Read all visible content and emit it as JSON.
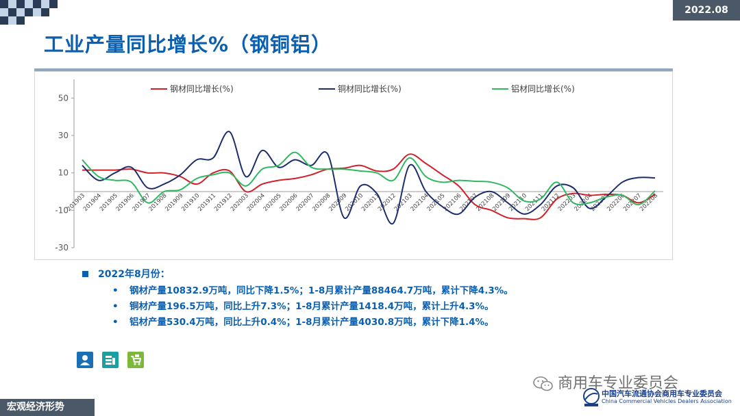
{
  "header": {
    "date_badge": "2022.08",
    "title": "工业产量同比增长%（钢铜铝）"
  },
  "chart_data": {
    "type": "line",
    "x": [
      "201903",
      "201904",
      "201905",
      "201906",
      "201907",
      "201908",
      "201909",
      "201910",
      "201911",
      "201912",
      "202003",
      "202004",
      "202005",
      "202006",
      "202007",
      "202008",
      "202009",
      "202010",
      "202011",
      "202012",
      "202103",
      "202104",
      "202105",
      "202106",
      "202107",
      "202108",
      "202109",
      "202110",
      "202111",
      "202112",
      "202203",
      "202204",
      "202205",
      "202206",
      "202207",
      "202208"
    ],
    "ylim": [
      -30,
      60
    ],
    "yticks": [
      -30,
      -10,
      10,
      30,
      50
    ],
    "grid": false,
    "legend_position": "top",
    "series": [
      {
        "name": "钢材同比增长(%)",
        "color": "#d0202a",
        "values": [
          11.5,
          11.5,
          11.5,
          12,
          10,
          10,
          8,
          4,
          10,
          11,
          0,
          4,
          6,
          7,
          9,
          12,
          12.5,
          14,
          11,
          12,
          20,
          15,
          9,
          3,
          -7,
          -10,
          -14,
          -14.5,
          -14,
          -4,
          -1,
          -2,
          -1.5,
          -2,
          -6,
          -1.5
        ]
      },
      {
        "name": "铜材同比增长(%)",
        "color": "#1c2d6e",
        "values": [
          14,
          6,
          10,
          13,
          2,
          4,
          9,
          17,
          18,
          32,
          8,
          22,
          13,
          17,
          14,
          20,
          -14,
          3,
          -1,
          -17,
          14,
          0,
          -8,
          -12,
          -3,
          0,
          -6,
          -12,
          -7,
          3,
          2,
          -9,
          -3,
          5,
          7.5,
          7.3
        ]
      },
      {
        "name": "铝材同比增长(%)",
        "color": "#2eb860",
        "values": [
          17,
          8,
          6,
          5,
          -6,
          0,
          1,
          7,
          9,
          10,
          3,
          12,
          14,
          21,
          13,
          12,
          12,
          11,
          10,
          6,
          18,
          8,
          5,
          6,
          5.5,
          5,
          2,
          -5,
          -4,
          5,
          -6,
          -6,
          -3,
          -2,
          -7,
          0.4
        ]
      }
    ]
  },
  "notes": {
    "heading": "2022年8月份：",
    "bullets": [
      {
        "dot": "•",
        "text": "钢材产量10832.9万吨，同比下降1.5%；1-8月累计产量88464.7万吨，累计下降4.3%。"
      },
      {
        "dot": "•",
        "text": "铜材产量196.5万吨，同比上升7.3%；1-8月累计产量1418.4万吨，累计上升4.3%。"
      },
      {
        "dot": "•",
        "text": "铝材产量530.4万吨，同比上升0.4%；1-8月累计产量4030.8万吨，累计下降1.4%。"
      }
    ]
  },
  "icons": [
    {
      "name": "person-icon",
      "color": "#1a6fb5"
    },
    {
      "name": "data-icon",
      "color": "#1aa0a0"
    },
    {
      "name": "cart-icon",
      "color": "#7cb83a"
    }
  ],
  "footer": {
    "section_label": "宏观经济形势",
    "wechat_name": "商用车专业委员会",
    "assoc_cn": "中国汽车流通协会商用车专业委员会",
    "assoc_en": "China Commercial Vehicles Dealers Association"
  }
}
